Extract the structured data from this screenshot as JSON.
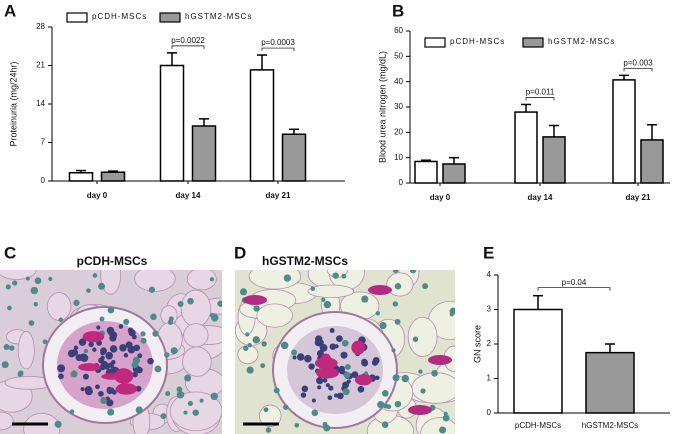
{
  "chart_data": [
    {
      "type": "bar",
      "panel_label": "A",
      "ylabel": "Proteinuria (mg/24hr)",
      "categories": [
        "day 0",
        "day 14",
        "day 21"
      ],
      "series": [
        {
          "name": "pCDH-MSCs",
          "color": "#ffffff",
          "values": [
            1.5,
            21,
            20.2
          ],
          "errors": [
            0.4,
            2.3,
            2.7
          ]
        },
        {
          "name": "hGSTM2-MSCs",
          "color": "#999999",
          "values": [
            1.6,
            10,
            8.5
          ],
          "errors": [
            0.2,
            1.3,
            0.9
          ]
        }
      ],
      "annotations": [
        null,
        "p=0.0022",
        "p=0.0003"
      ],
      "ylim": [
        0,
        28
      ],
      "yticks": [
        0,
        7,
        14,
        21,
        28
      ]
    },
    {
      "type": "bar",
      "panel_label": "B",
      "ylabel": "Blood urea nitrogen (mg/dL)",
      "categories": [
        "day 0",
        "day 14",
        "day 21"
      ],
      "series": [
        {
          "name": "pCDH-MSCs",
          "color": "#ffffff",
          "values": [
            8.5,
            28,
            40.7
          ],
          "errors": [
            0.5,
            3,
            1.8
          ]
        },
        {
          "name": "hGSTM2-MSCs",
          "color": "#999999",
          "values": [
            7.5,
            18.2,
            17
          ],
          "errors": [
            2.5,
            4.5,
            6
          ]
        }
      ],
      "annotations": [
        null,
        "p=0.011",
        "p=0.003"
      ],
      "ylim": [
        0,
        60
      ],
      "yticks": [
        0,
        10,
        20,
        30,
        40,
        50,
        60
      ]
    },
    {
      "type": "single_bar",
      "panel_label": "E",
      "ylabel": "GN score",
      "categories": [
        "pCDH-MSCs",
        "hGSTM2-MSCs"
      ],
      "values": [
        3.0,
        1.75
      ],
      "errors": [
        0.4,
        0.25
      ],
      "colors": [
        "#ffffff",
        "#999999"
      ],
      "annotation": "p=0.04",
      "ylim": [
        0,
        4
      ],
      "yticks": [
        0,
        1,
        2,
        3,
        4
      ]
    }
  ],
  "images": [
    {
      "panel_label": "C",
      "title": "pCDH-MSCs"
    },
    {
      "panel_label": "D",
      "title": "hGSTM2-MSCs"
    }
  ]
}
